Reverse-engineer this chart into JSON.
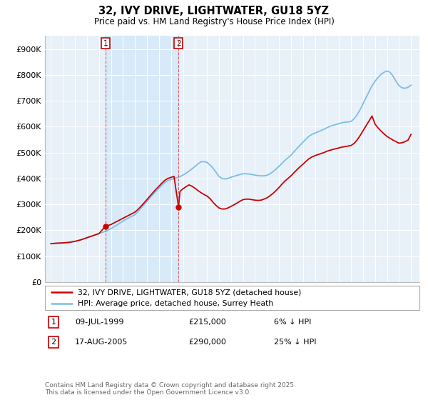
{
  "title": "32, IVY DRIVE, LIGHTWATER, GU18 5YZ",
  "subtitle": "Price paid vs. HM Land Registry's House Price Index (HPI)",
  "legend_line1": "32, IVY DRIVE, LIGHTWATER, GU18 5YZ (detached house)",
  "legend_line2": "HPI: Average price, detached house, Surrey Heath",
  "annotation1_num": "1",
  "annotation1_date": "09-JUL-1999",
  "annotation1_price": "£215,000",
  "annotation1_hpi": "6% ↓ HPI",
  "annotation2_num": "2",
  "annotation2_date": "17-AUG-2005",
  "annotation2_price": "£290,000",
  "annotation2_hpi": "25% ↓ HPI",
  "footnote": "Contains HM Land Registry data © Crown copyright and database right 2025.\nThis data is licensed under the Open Government Licence v3.0.",
  "hpi_color": "#7bbfe8",
  "paid_color": "#cc0000",
  "shade_color": "#d8eaf8",
  "marker1_x": 1999.53,
  "marker1_y": 215000,
  "marker2_x": 2005.63,
  "marker2_y": 290000,
  "ylim": [
    0,
    950000
  ],
  "xlim_start": 1994.5,
  "xlim_end": 2025.7,
  "yticks": [
    0,
    100000,
    200000,
    300000,
    400000,
    500000,
    600000,
    700000,
    800000,
    900000
  ],
  "ytick_labels": [
    "£0",
    "£100K",
    "£200K",
    "£300K",
    "£400K",
    "£500K",
    "£600K",
    "£700K",
    "£800K",
    "£900K"
  ],
  "xticks": [
    1995,
    1996,
    1997,
    1998,
    1999,
    2000,
    2001,
    2002,
    2003,
    2004,
    2005,
    2006,
    2007,
    2008,
    2009,
    2010,
    2011,
    2012,
    2013,
    2014,
    2015,
    2016,
    2017,
    2018,
    2019,
    2020,
    2021,
    2022,
    2023,
    2024,
    2025
  ],
  "background_color": "#e8f0f8",
  "hpi_years": [
    1995.0,
    1995.25,
    1995.5,
    1995.75,
    1996.0,
    1996.25,
    1996.5,
    1996.75,
    1997.0,
    1997.25,
    1997.5,
    1997.75,
    1998.0,
    1998.25,
    1998.5,
    1998.75,
    1999.0,
    1999.25,
    1999.5,
    1999.75,
    2000.0,
    2000.25,
    2000.5,
    2000.75,
    2001.0,
    2001.25,
    2001.5,
    2001.75,
    2002.0,
    2002.25,
    2002.5,
    2002.75,
    2003.0,
    2003.25,
    2003.5,
    2003.75,
    2004.0,
    2004.25,
    2004.5,
    2004.75,
    2005.0,
    2005.25,
    2005.5,
    2005.75,
    2006.0,
    2006.25,
    2006.5,
    2006.75,
    2007.0,
    2007.25,
    2007.5,
    2007.75,
    2008.0,
    2008.25,
    2008.5,
    2008.75,
    2009.0,
    2009.25,
    2009.5,
    2009.75,
    2010.0,
    2010.25,
    2010.5,
    2010.75,
    2011.0,
    2011.25,
    2011.5,
    2011.75,
    2012.0,
    2012.25,
    2012.5,
    2012.75,
    2013.0,
    2013.25,
    2013.5,
    2013.75,
    2014.0,
    2014.25,
    2014.5,
    2014.75,
    2015.0,
    2015.25,
    2015.5,
    2015.75,
    2016.0,
    2016.25,
    2016.5,
    2016.75,
    2017.0,
    2017.25,
    2017.5,
    2017.75,
    2018.0,
    2018.25,
    2018.5,
    2018.75,
    2019.0,
    2019.25,
    2019.5,
    2019.75,
    2020.0,
    2020.25,
    2020.5,
    2020.75,
    2021.0,
    2021.25,
    2021.5,
    2021.75,
    2022.0,
    2022.25,
    2022.5,
    2022.75,
    2023.0,
    2023.25,
    2023.5,
    2023.75,
    2024.0,
    2024.25,
    2024.5,
    2024.75,
    2025.0
  ],
  "hpi_values": [
    148000,
    149000,
    150000,
    150500,
    151000,
    152000,
    153000,
    155000,
    157000,
    160000,
    163000,
    167000,
    171000,
    175000,
    179000,
    183000,
    187000,
    191000,
    195000,
    200000,
    206000,
    213000,
    220000,
    228000,
    235000,
    242000,
    248000,
    254000,
    260000,
    272000,
    285000,
    298000,
    311000,
    325000,
    338000,
    350000,
    362000,
    374000,
    385000,
    392000,
    396000,
    400000,
    403000,
    407000,
    413000,
    420000,
    428000,
    437000,
    446000,
    456000,
    464000,
    465000,
    462000,
    452000,
    440000,
    424000,
    408000,
    400000,
    398000,
    400000,
    405000,
    408000,
    412000,
    415000,
    418000,
    418000,
    417000,
    415000,
    413000,
    411000,
    410000,
    410000,
    412000,
    418000,
    426000,
    436000,
    447000,
    458000,
    470000,
    480000,
    490000,
    503000,
    516000,
    528000,
    540000,
    552000,
    563000,
    570000,
    575000,
    580000,
    585000,
    590000,
    596000,
    601000,
    605000,
    608000,
    612000,
    615000,
    617000,
    618000,
    620000,
    630000,
    645000,
    665000,
    688000,
    712000,
    735000,
    758000,
    775000,
    790000,
    802000,
    810000,
    815000,
    810000,
    795000,
    775000,
    758000,
    750000,
    748000,
    752000,
    760000
  ],
  "paid_years": [
    1995.0,
    1995.25,
    1995.5,
    1995.75,
    1996.0,
    1996.25,
    1996.5,
    1996.75,
    1997.0,
    1997.25,
    1997.5,
    1997.75,
    1998.0,
    1998.25,
    1998.5,
    1998.75,
    1999.0,
    1999.25,
    1999.53,
    1999.75,
    2000.0,
    2000.25,
    2000.5,
    2000.75,
    2001.0,
    2001.25,
    2001.5,
    2001.75,
    2002.0,
    2002.25,
    2002.5,
    2002.75,
    2003.0,
    2003.25,
    2003.5,
    2003.75,
    2004.0,
    2004.25,
    2004.5,
    2004.75,
    2005.0,
    2005.25,
    2005.63,
    2005.75,
    2006.0,
    2006.25,
    2006.5,
    2006.75,
    2007.0,
    2007.25,
    2007.5,
    2007.75,
    2008.0,
    2008.25,
    2008.5,
    2008.75,
    2009.0,
    2009.25,
    2009.5,
    2009.75,
    2010.0,
    2010.25,
    2010.5,
    2010.75,
    2011.0,
    2011.25,
    2011.5,
    2011.75,
    2012.0,
    2012.25,
    2012.5,
    2012.75,
    2013.0,
    2013.25,
    2013.5,
    2013.75,
    2014.0,
    2014.25,
    2014.5,
    2014.75,
    2015.0,
    2015.25,
    2015.5,
    2015.75,
    2016.0,
    2016.25,
    2016.5,
    2016.75,
    2017.0,
    2017.25,
    2017.5,
    2017.75,
    2018.0,
    2018.25,
    2018.5,
    2018.75,
    2019.0,
    2019.25,
    2019.5,
    2019.75,
    2020.0,
    2020.25,
    2020.5,
    2020.75,
    2021.0,
    2021.25,
    2021.5,
    2021.75,
    2022.0,
    2022.25,
    2022.5,
    2022.75,
    2023.0,
    2023.25,
    2023.5,
    2023.75,
    2024.0,
    2024.25,
    2024.5,
    2024.75,
    2025.0
  ],
  "paid_values": [
    148000,
    149000,
    150000,
    150500,
    151000,
    152000,
    153000,
    155000,
    157000,
    160000,
    163000,
    167000,
    171000,
    175000,
    179000,
    183000,
    187000,
    200000,
    215000,
    218000,
    222000,
    228000,
    234000,
    240000,
    246000,
    252000,
    258000,
    264000,
    270000,
    280000,
    292000,
    305000,
    318000,
    332000,
    345000,
    358000,
    370000,
    382000,
    393000,
    400000,
    404000,
    408000,
    290000,
    350000,
    360000,
    368000,
    375000,
    370000,
    362000,
    353000,
    345000,
    338000,
    332000,
    322000,
    308000,
    296000,
    286000,
    282000,
    282000,
    286000,
    292000,
    298000,
    305000,
    312000,
    318000,
    320000,
    320000,
    318000,
    316000,
    315000,
    316000,
    320000,
    325000,
    333000,
    342000,
    353000,
    365000,
    378000,
    390000,
    400000,
    410000,
    422000,
    434000,
    445000,
    455000,
    466000,
    476000,
    483000,
    488000,
    492000,
    496000,
    500000,
    505000,
    509000,
    512000,
    515000,
    518000,
    521000,
    523000,
    525000,
    527000,
    535000,
    548000,
    565000,
    584000,
    603000,
    622000,
    641000,
    610000,
    595000,
    583000,
    572000,
    562000,
    555000,
    548000,
    542000,
    536000,
    538000,
    542000,
    548000,
    570000
  ]
}
